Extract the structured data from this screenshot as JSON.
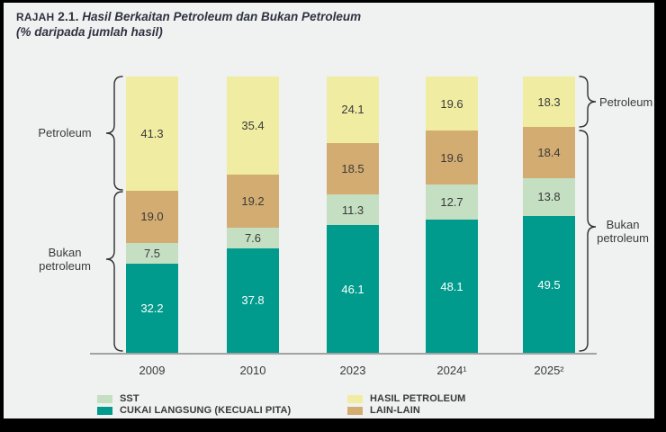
{
  "title": {
    "tag": "RAJAH",
    "number": "2.1.",
    "text": "Hasil Berkaitan Petroleum dan Bukan Petroleum",
    "subtitle": "(% daripada jumlah hasil)"
  },
  "annotations": {
    "left_petroleum": "Petroleum",
    "left_bukan": "Bukan petroleum",
    "right_petroleum": "Petroleum",
    "right_bukan": "Bukan petroleum"
  },
  "legend": {
    "items": [
      {
        "label": "SST",
        "color": "#c5dfc2"
      },
      {
        "label": "CUKAI LANGSUNG (KECUALI PITA)",
        "color": "#009b8c"
      },
      {
        "label": "HASIL PETROLEUM",
        "color": "#f0eda2"
      },
      {
        "label": "LAIN-LAIN",
        "color": "#d3ac71"
      }
    ]
  },
  "chart_data": {
    "type": "bar",
    "stacked": true,
    "title": "RAJAH 2.1. Hasil Berkaitan Petroleum dan Bukan Petroleum (% daripada jumlah hasil)",
    "categories": [
      "2009",
      "2010",
      "2023",
      "2024¹",
      "2025²"
    ],
    "series": [
      {
        "name": "CUKAI LANGSUNG (KECUALI PITA)",
        "color": "#009b8c",
        "label_color": "#ffffff",
        "values": [
          32.2,
          37.8,
          46.1,
          48.1,
          49.5
        ]
      },
      {
        "name": "SST",
        "color": "#c5dfc2",
        "label_color": "#3a3a3a",
        "values": [
          7.5,
          7.6,
          11.3,
          12.7,
          13.8
        ]
      },
      {
        "name": "LAIN-LAIN",
        "color": "#d3ac71",
        "label_color": "#3a3a3a",
        "values": [
          19.0,
          19.2,
          18.5,
          19.6,
          18.4
        ]
      },
      {
        "name": "HASIL PETROLEUM",
        "color": "#f0eda2",
        "label_color": "#3a3a3a",
        "values": [
          41.3,
          35.4,
          24.1,
          19.6,
          18.3
        ]
      }
    ],
    "groups": {
      "petroleum": [
        "HASIL PETROLEUM"
      ],
      "bukan_petroleum": [
        "CUKAI LANGSUNG (KECUALI PITA)",
        "SST",
        "LAIN-LAIN"
      ]
    },
    "ylim": [
      0,
      100
    ],
    "grid": false,
    "legend_position": "bottom"
  }
}
